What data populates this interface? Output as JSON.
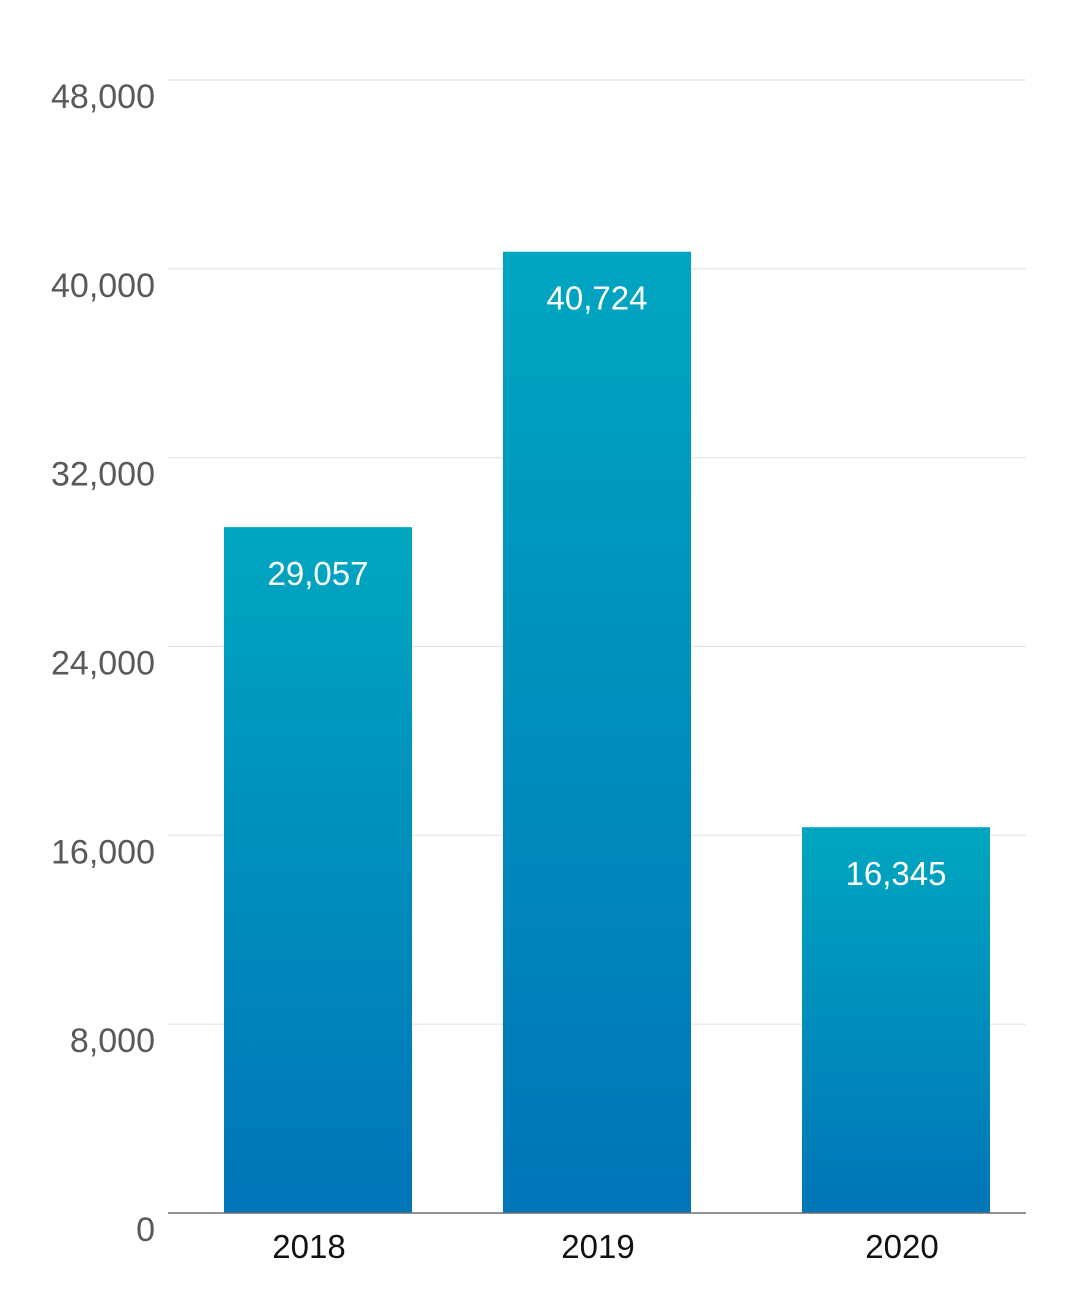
{
  "chart_data": {
    "type": "bar",
    "title": "",
    "xlabel": "",
    "ylabel": "",
    "categories": [
      "2018",
      "2019",
      "2020"
    ],
    "values": [
      29057,
      40724,
      16345
    ],
    "data_labels": [
      "29,057",
      "40,724",
      "16,345"
    ],
    "ylim": [
      0,
      48000
    ],
    "yticks": [
      0,
      8000,
      16000,
      24000,
      32000,
      40000,
      48000
    ],
    "ytick_labels": [
      "0",
      "8,000",
      "16,000",
      "24,000",
      "32,000",
      "40,000",
      "48,000"
    ],
    "grid": true,
    "legend": "none",
    "colors": {
      "bar_top": "#00a6c0",
      "bar_bottom": "#0075b8"
    }
  }
}
